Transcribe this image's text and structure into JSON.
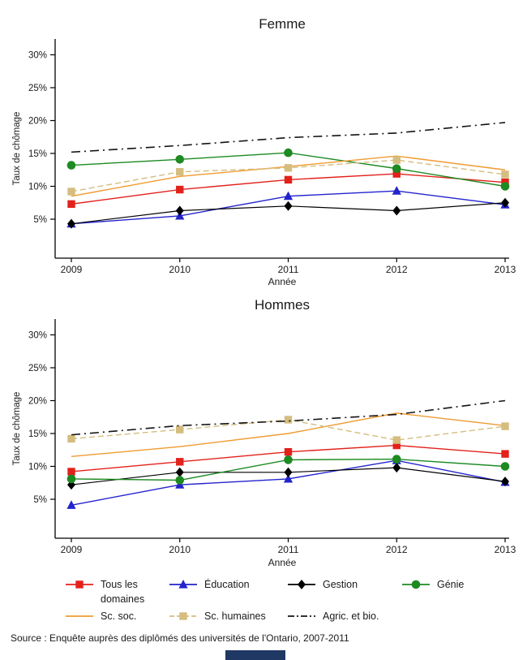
{
  "source_note": "Source : Enquête auprès des diplômés des universités de l'Ontario, 2007-2011",
  "legend": {
    "items": [
      {
        "label": "Tous les domaines",
        "series_key": "tous"
      },
      {
        "label": "Éducation",
        "series_key": "education"
      },
      {
        "label": "Gestion",
        "series_key": "gestion"
      },
      {
        "label": "Génie",
        "series_key": "genie"
      },
      {
        "label": "Sc. soc.",
        "series_key": "sc_soc"
      },
      {
        "label": "Sc. humaines",
        "series_key": "sc_humaines"
      },
      {
        "label": "Agric. et bio.",
        "series_key": "agric"
      }
    ]
  },
  "chart_data": [
    {
      "type": "line",
      "title": "Femme",
      "xlabel": "Année",
      "ylabel": "Taux de chômage",
      "categories": [
        "2009",
        "2010",
        "2011",
        "2012",
        "2013"
      ],
      "yticks": [
        5,
        10,
        15,
        20,
        25,
        30
      ],
      "ytick_suffix": "%",
      "ylim": [
        0,
        32
      ],
      "grid": false,
      "legend_position": "bottom",
      "series": [
        {
          "name": "Tous les domaines",
          "key": "tous",
          "color": "#e3211b",
          "marker": "square",
          "dash": "solid",
          "values": [
            7.3,
            9.5,
            11.0,
            11.9,
            10.6
          ]
        },
        {
          "name": "Éducation",
          "key": "education",
          "color": "#2323cd",
          "marker": "triangle",
          "dash": "solid",
          "values": [
            4.3,
            5.5,
            8.5,
            9.3,
            7.2
          ]
        },
        {
          "name": "Gestion",
          "key": "gestion",
          "color": "#000000",
          "marker": "diamond",
          "dash": "solid",
          "values": [
            4.3,
            6.3,
            7.0,
            6.3,
            7.5
          ]
        },
        {
          "name": "Génie",
          "key": "genie",
          "color": "#1d8a22",
          "marker": "circle",
          "dash": "solid",
          "values": [
            13.2,
            14.1,
            15.1,
            12.7,
            10.0
          ]
        },
        {
          "name": "Sc. soc.",
          "key": "sc_soc",
          "color": "#ef9b30",
          "marker": "none",
          "dash": "solid",
          "values": [
            8.5,
            11.5,
            13.0,
            14.6,
            12.5
          ]
        },
        {
          "name": "Sc. humaines",
          "key": "sc_humaines",
          "color": "#d4bd7f",
          "marker": "square",
          "dash": "dashed",
          "values": [
            9.2,
            12.2,
            12.8,
            14.0,
            11.8
          ]
        },
        {
          "name": "Agric. et bio.",
          "key": "agric",
          "color": "#141414",
          "marker": "none",
          "dash": "dashdot",
          "values": [
            15.2,
            16.2,
            17.4,
            18.1,
            19.7
          ]
        }
      ]
    },
    {
      "type": "line",
      "title": "Hommes",
      "xlabel": "Année",
      "ylabel": "Taux de chômage",
      "categories": [
        "2009",
        "2010",
        "2011",
        "2012",
        "2013"
      ],
      "yticks": [
        5,
        10,
        15,
        20,
        25,
        30
      ],
      "ytick_suffix": "%",
      "ylim": [
        0,
        32
      ],
      "grid": false,
      "legend_position": "bottom",
      "series": [
        {
          "name": "Tous les domaines",
          "key": "tous",
          "color": "#e3211b",
          "marker": "square",
          "dash": "solid",
          "values": [
            9.2,
            10.7,
            12.2,
            13.2,
            11.9
          ]
        },
        {
          "name": "Éducation",
          "key": "education",
          "color": "#2323cd",
          "marker": "triangle",
          "dash": "solid",
          "values": [
            4.1,
            7.2,
            8.1,
            10.9,
            7.6
          ]
        },
        {
          "name": "Gestion",
          "key": "gestion",
          "color": "#000000",
          "marker": "diamond",
          "dash": "solid",
          "values": [
            7.2,
            9.1,
            9.1,
            9.8,
            7.7
          ]
        },
        {
          "name": "Génie",
          "key": "genie",
          "color": "#1d8a22",
          "marker": "circle",
          "dash": "solid",
          "values": [
            8.1,
            7.9,
            11.0,
            11.1,
            10.0
          ]
        },
        {
          "name": "Sc. soc.",
          "key": "sc_soc",
          "color": "#ef9b30",
          "marker": "none",
          "dash": "solid",
          "values": [
            11.5,
            13.0,
            15.0,
            18.1,
            16.2
          ]
        },
        {
          "name": "Sc. humaines",
          "key": "sc_humaines",
          "color": "#d4bd7f",
          "marker": "square",
          "dash": "dashed",
          "values": [
            14.2,
            15.6,
            17.1,
            14.0,
            16.1
          ]
        },
        {
          "name": "Agric. et bio.",
          "key": "agric",
          "color": "#141414",
          "marker": "none",
          "dash": "dashdot",
          "values": [
            14.8,
            16.2,
            16.9,
            17.9,
            20.0
          ]
        }
      ]
    }
  ]
}
